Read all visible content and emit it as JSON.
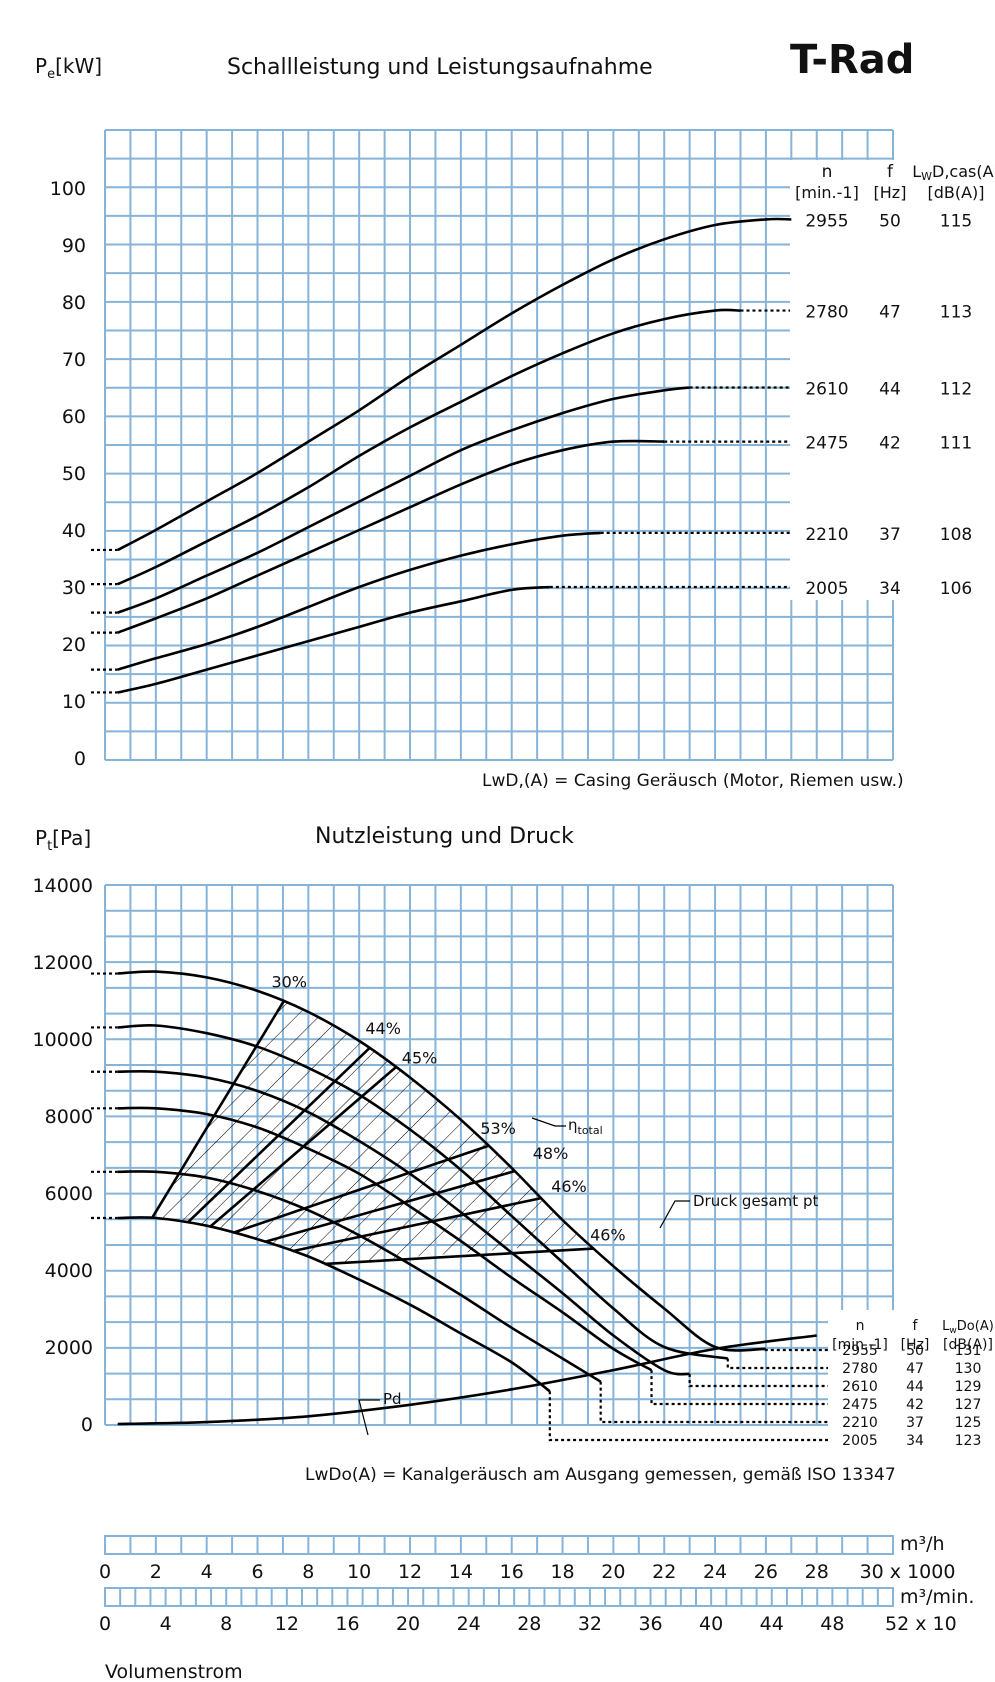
{
  "header": {
    "title_top": "Schallleistung und Leistungsaufnahme",
    "brand": "T-Rad"
  },
  "chart_data": [
    {
      "type": "line",
      "title": "Schallleistung und Leistungsaufnahme",
      "ylabel": "Pe[kW]",
      "ylabel_main": "P",
      "ylabel_sub": "e",
      "ylabel_unit": "[kW]",
      "ylim": [
        0,
        100
      ],
      "yticks": [
        "0",
        "10",
        "20",
        "30",
        "40",
        "50",
        "60",
        "70",
        "80",
        "90",
        "100"
      ],
      "xlim": [
        0,
        31
      ],
      "grid": true,
      "table_headers": {
        "n": "n",
        "n_unit": "[min.-1]",
        "f": "f",
        "f_unit": "[Hz]",
        "lw": "LwD,cas(A)",
        "lw_main": "L",
        "lw_sub": "W",
        "lw_rest": "D,cas(A)",
        "lw_unit": "[dB(A)]"
      },
      "series": [
        {
          "n": "2955",
          "f": "50",
          "lw": "115",
          "x": [
            0.5,
            2,
            4,
            6,
            8,
            10,
            12,
            14,
            16,
            18,
            20,
            22,
            24,
            26,
            27
          ],
          "y": [
            36.5,
            40,
            45,
            50,
            55.5,
            61,
            67,
            72.5,
            78,
            83,
            87.5,
            91,
            93.5,
            94.5,
            94.5
          ]
        },
        {
          "n": "2780",
          "f": "47",
          "lw": "113",
          "x": [
            0.5,
            2,
            4,
            6,
            8,
            10,
            12,
            14,
            16,
            18,
            20,
            22,
            24,
            25
          ],
          "y": [
            30.5,
            33.5,
            38,
            42.5,
            47.5,
            53,
            58,
            62.5,
            67,
            71,
            74.5,
            77,
            78.5,
            78.5
          ]
        },
        {
          "n": "2610",
          "f": "44",
          "lw": "112",
          "x": [
            0.5,
            2,
            4,
            6,
            8,
            10,
            12,
            14,
            16,
            18,
            20,
            22,
            23
          ],
          "y": [
            25.5,
            28,
            32,
            36,
            40.5,
            45,
            49.5,
            54,
            57.5,
            60.5,
            63,
            64.5,
            65
          ]
        },
        {
          "n": "2475",
          "f": "42",
          "lw": "111",
          "x": [
            0.5,
            2,
            4,
            6,
            8,
            10,
            12,
            14,
            16,
            18,
            20,
            22
          ],
          "y": [
            22,
            24.5,
            28,
            32,
            36,
            40,
            44,
            48,
            51.5,
            54,
            55.5,
            55.5
          ]
        },
        {
          "n": "2210",
          "f": "37",
          "lw": "108",
          "x": [
            0.5,
            2,
            4,
            6,
            8,
            10,
            12,
            14,
            16,
            18,
            19.5
          ],
          "y": [
            15.5,
            17.5,
            20,
            23,
            26.5,
            30,
            33,
            35.5,
            37.5,
            39,
            39.5
          ]
        },
        {
          "n": "2005",
          "f": "34",
          "lw": "106",
          "x": [
            0.5,
            2,
            4,
            6,
            8,
            10,
            12,
            14,
            16,
            17.5
          ],
          "y": [
            11.5,
            13,
            15.5,
            18,
            20.5,
            23,
            25.5,
            27.5,
            29.5,
            30
          ]
        }
      ],
      "annotation": "LwD,(A) = Casing Geräusch (Motor, Riemen usw.)"
    },
    {
      "type": "line",
      "title": "Nutzleistung und Druck",
      "ylabel": "Pt[Pa]",
      "ylabel_main": "P",
      "ylabel_sub": "t",
      "ylabel_unit": "[Pa]",
      "ylim": [
        0,
        14000
      ],
      "yticks": [
        "0",
        "2000",
        "4000",
        "6000",
        "8000",
        "10000",
        "12000",
        "14000"
      ],
      "xlim": [
        0,
        31
      ],
      "grid": true,
      "table_headers": {
        "n": "n",
        "n_unit": "[min.-1]",
        "f": "f",
        "f_unit": "[Hz]",
        "lw": "LwDo(A)",
        "lw_main": "L",
        "lw_sub": "w",
        "lw_rest": "Do(A)",
        "lw_unit": "[dB(A)]"
      },
      "series": [
        {
          "n": "2955",
          "f": "50",
          "lw": "131",
          "x": [
            0.5,
            2,
            4,
            6,
            8,
            10,
            12,
            14,
            16,
            18,
            20,
            22,
            24,
            26
          ],
          "y": [
            11700,
            11750,
            11600,
            11250,
            10700,
            9950,
            9000,
            7900,
            6650,
            5300,
            4100,
            3000,
            2000,
            1950
          ]
        },
        {
          "n": "2780",
          "f": "47",
          "lw": "130",
          "x": [
            0.5,
            2,
            4,
            6,
            8,
            10,
            12,
            14,
            16,
            18,
            20,
            22,
            24.5
          ],
          "y": [
            10300,
            10350,
            10150,
            9800,
            9250,
            8550,
            7650,
            6600,
            5400,
            4200,
            3000,
            2000,
            1700
          ]
        },
        {
          "n": "2610",
          "f": "44",
          "lw": "129",
          "x": [
            0.5,
            2,
            4,
            6,
            8,
            10,
            12,
            14,
            16,
            18,
            20,
            22,
            23
          ],
          "y": [
            9150,
            9150,
            9000,
            8650,
            8100,
            7350,
            6500,
            5500,
            4450,
            3400,
            2300,
            1400,
            1300
          ]
        },
        {
          "n": "2475",
          "f": "42",
          "lw": "127",
          "x": [
            0.5,
            2,
            4,
            6,
            8,
            10,
            12,
            14,
            16,
            18,
            20,
            21.5
          ],
          "y": [
            8200,
            8200,
            8050,
            7700,
            7150,
            6500,
            5650,
            4750,
            3800,
            2900,
            1950,
            1400
          ]
        },
        {
          "n": "2210",
          "f": "37",
          "lw": "125",
          "x": [
            0.5,
            2,
            4,
            6,
            8,
            10,
            12,
            14,
            16,
            18,
            19.5
          ],
          "y": [
            6550,
            6550,
            6400,
            6050,
            5550,
            4900,
            4150,
            3350,
            2500,
            1700,
            1100
          ]
        },
        {
          "n": "2005",
          "f": "34",
          "lw": "123",
          "x": [
            0.5,
            2,
            4,
            6,
            8,
            10,
            12,
            14,
            16,
            17.5
          ],
          "y": [
            5350,
            5350,
            5150,
            4800,
            4350,
            3750,
            3100,
            2350,
            1600,
            850
          ]
        }
      ],
      "pd_curve": {
        "label": "Pd",
        "x": [
          0.5,
          4,
          8,
          12,
          16,
          20,
          24,
          28
        ],
        "y": [
          0,
          50,
          200,
          500,
          900,
          1400,
          1950,
          2300
        ]
      },
      "efficiency_labels": [
        "30%",
        "44%",
        "45%",
        "53%",
        "48%",
        "46%",
        "46%"
      ],
      "labels": {
        "eta": "η",
        "eta_sub": "total",
        "druck": "Druck gesamt pt",
        "pd": "Pd"
      },
      "annotation": "LwDo(A) = Kanalgeräusch am Ausgang gemessen, gemäß ISO 13347"
    }
  ],
  "axes": {
    "m3h_unit": "m³/h",
    "m3h_ticks": [
      "0",
      "2",
      "4",
      "6",
      "8",
      "10",
      "12",
      "14",
      "16",
      "18",
      "20",
      "22",
      "24",
      "26",
      "28",
      "30 x 1000"
    ],
    "m3min_unit": "m³/min.",
    "m3min_ticks": [
      "0",
      "4",
      "8",
      "12",
      "16",
      "20",
      "24",
      "28",
      "32",
      "36",
      "40",
      "44",
      "48",
      "52 x 10"
    ],
    "xlabel": "Volumenstrom"
  }
}
